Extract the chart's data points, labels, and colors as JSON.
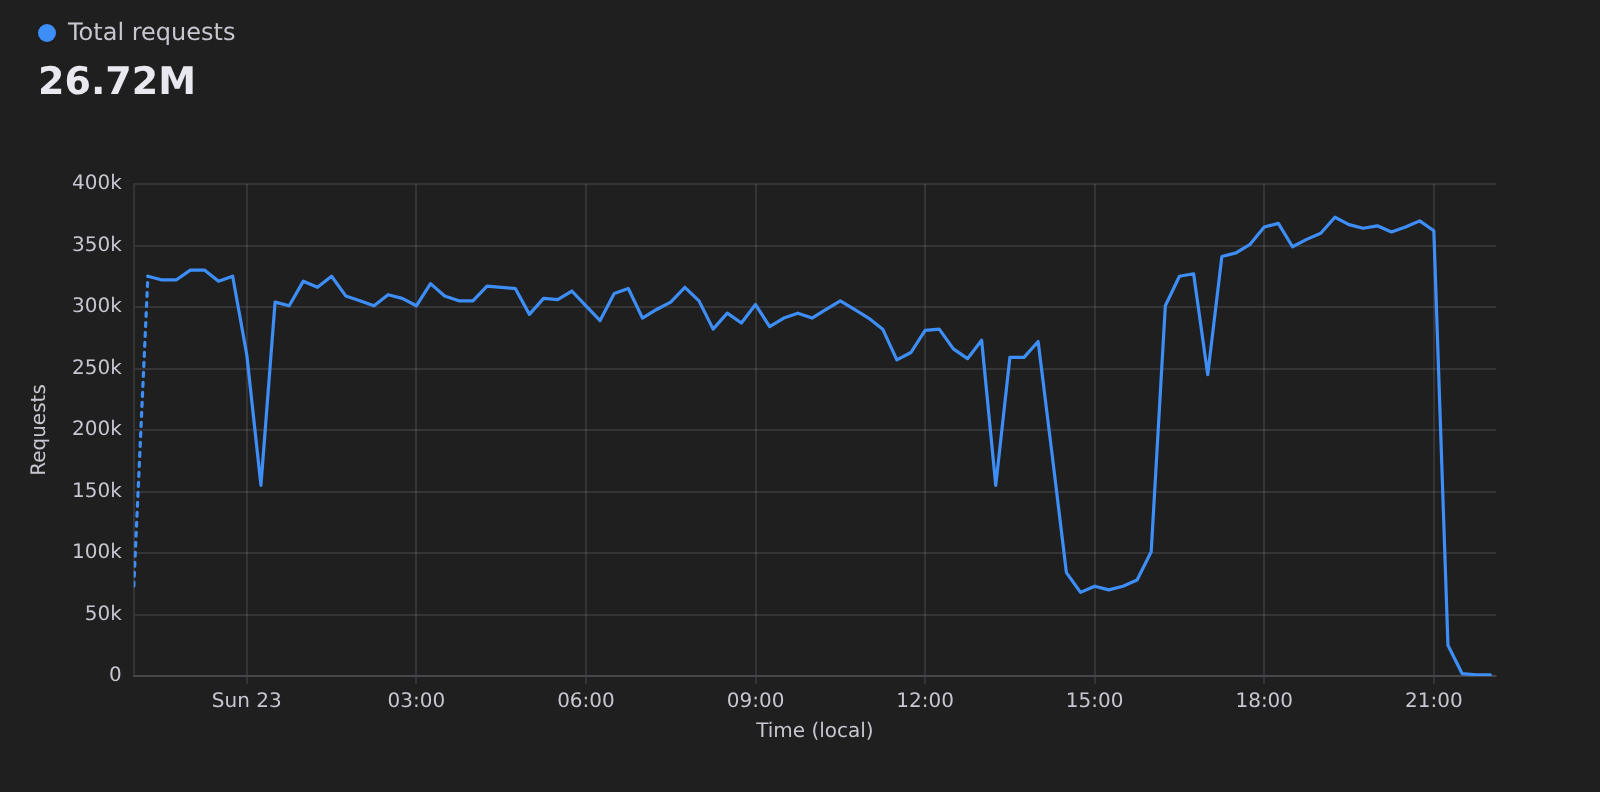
{
  "chart_data": {
    "type": "line",
    "subtitle": "26.72M",
    "xlabel": "Time (local)",
    "ylabel": "Requests",
    "xlim": [
      -2,
      22.1
    ],
    "xticks": [
      {
        "value": 0,
        "label": "Sun 23"
      },
      {
        "value": 3,
        "label": "03:00"
      },
      {
        "value": 6,
        "label": "06:00"
      },
      {
        "value": 9,
        "label": "09:00"
      },
      {
        "value": 12,
        "label": "12:00"
      },
      {
        "value": 15,
        "label": "15:00"
      },
      {
        "value": 18,
        "label": "18:00"
      },
      {
        "value": 21,
        "label": "21:00"
      }
    ],
    "ylim": [
      0,
      400000
    ],
    "yticks": [
      0,
      {
        "value": 50000,
        "label": "50k"
      },
      {
        "value": 100000,
        "label": "100k"
      },
      {
        "value": 150000,
        "label": "150k"
      },
      {
        "value": 200000,
        "label": "200k"
      },
      {
        "value": 250000,
        "label": "250k"
      },
      {
        "value": 300000,
        "label": "300k"
      },
      {
        "value": 350000,
        "label": "350k"
      },
      {
        "value": 400000,
        "label": "400k"
      }
    ],
    "grid": true,
    "legend": "top left",
    "marker": "none",
    "series": [
      {
        "name": "Total requests",
        "color": "#3d8ef7",
        "line_style": "solid",
        "x": [
          -1.75,
          -1.5,
          -1.25,
          -1,
          -0.75,
          -0.5,
          -0.25,
          0,
          0.25,
          0.5,
          0.75,
          1,
          1.25,
          1.5,
          1.75,
          2,
          2.25,
          2.5,
          2.75,
          3,
          3.25,
          3.5,
          3.75,
          4,
          4.25,
          4.5,
          4.75,
          5,
          5.25,
          5.5,
          5.75,
          6,
          6.25,
          6.5,
          6.75,
          7,
          7.25,
          7.5,
          7.75,
          8,
          8.25,
          8.5,
          8.75,
          9,
          9.25,
          9.5,
          9.75,
          10,
          10.25,
          10.5,
          10.75,
          11,
          11.25,
          11.5,
          11.75,
          12,
          12.25,
          12.5,
          12.75,
          13,
          13.25,
          13.5,
          13.75,
          14,
          14.25,
          14.5,
          14.75,
          15,
          15.25,
          15.5,
          15.75,
          16,
          16.25,
          16.5,
          16.75,
          17,
          17.25,
          17.5,
          17.75,
          18,
          18.25,
          18.5,
          18.75,
          19,
          19.25,
          19.5,
          19.75,
          20,
          20.25,
          20.5,
          20.75,
          21,
          21.25,
          21.5,
          21.75,
          22
        ],
        "values": [
          325000,
          322000,
          322000,
          330000,
          330000,
          321000,
          325000,
          261000,
          155000,
          304000,
          301000,
          321000,
          316000,
          325000,
          309000,
          305000,
          301000,
          310000,
          307000,
          301000,
          319000,
          309000,
          305000,
          305000,
          317000,
          316000,
          315000,
          294000,
          307000,
          306000,
          313000,
          301000,
          289000,
          311000,
          315000,
          291000,
          298000,
          304000,
          316000,
          305000,
          282000,
          295000,
          287000,
          302000,
          284000,
          291000,
          295000,
          291000,
          298000,
          305000,
          298000,
          291000,
          282000,
          257000,
          263000,
          281000,
          282000,
          266000,
          258000,
          273000,
          155000,
          259000,
          259000,
          272000,
          179000,
          84000,
          68000,
          73000,
          70000,
          73000,
          78000,
          101000,
          301000,
          325000,
          327000,
          245000,
          341000,
          344000,
          351000,
          365000,
          368000,
          349000,
          355000,
          360000,
          373000,
          367000,
          364000,
          366000,
          361000,
          365000,
          370000,
          362000,
          25000,
          2000,
          1000,
          1000
        ]
      },
      {
        "color": "#3d8ef7",
        "line_style": "dotted",
        "x": [
          -2,
          -1.75
        ],
        "values": [
          73000,
          325000
        ]
      }
    ]
  }
}
